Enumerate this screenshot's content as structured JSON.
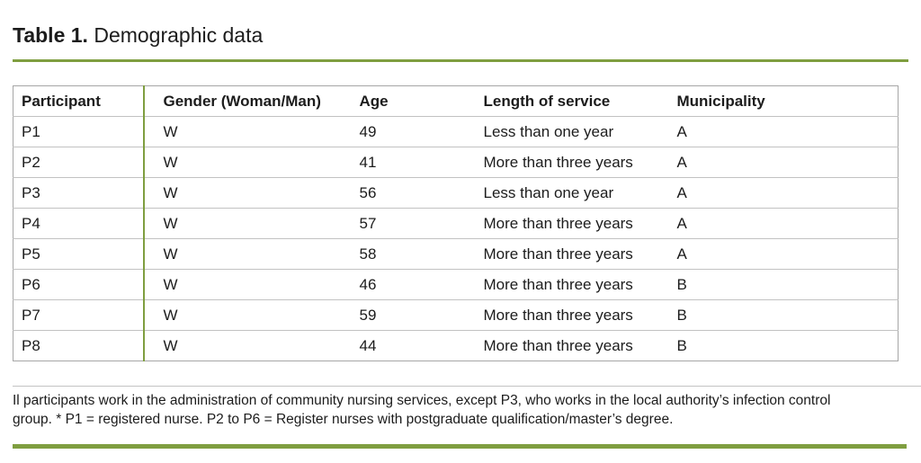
{
  "page": {
    "title_label": "Table 1.",
    "title_text": " Demographic data"
  },
  "table": {
    "columns": [
      "Participant",
      "Gender (Woman/Man)",
      "Age",
      "Length of service",
      "Municipality"
    ],
    "rows": [
      [
        "P1",
        "W",
        "49",
        "Less than one year",
        "A"
      ],
      [
        "P2",
        "W",
        "41",
        "More than three years",
        "A"
      ],
      [
        "P3",
        "W",
        "56",
        "Less than one year",
        "A"
      ],
      [
        "P4",
        "W",
        "57",
        "More than three years",
        "A"
      ],
      [
        "P5",
        "W",
        "58",
        "More than three years",
        "A"
      ],
      [
        "P6",
        "W",
        "46",
        "More than three years",
        "B"
      ],
      [
        "P7",
        "W",
        "59",
        "More than three years",
        "B"
      ],
      [
        "P8",
        "W",
        "44",
        "More than three years",
        "B"
      ]
    ]
  },
  "footnote": {
    "lines": [
      "Il participants work in the administration of community nursing services, except P3, who works in the local authority’s infection control",
      "group. * P1 = registered nurse. P2 to P6 = Register nurses with postgraduate qualification/master’s degree."
    ]
  },
  "colors": {
    "accent_green": "#7F9E40",
    "border_gray_outer": "#A6A6A6",
    "border_gray_inner": "#C2C2C2"
  }
}
